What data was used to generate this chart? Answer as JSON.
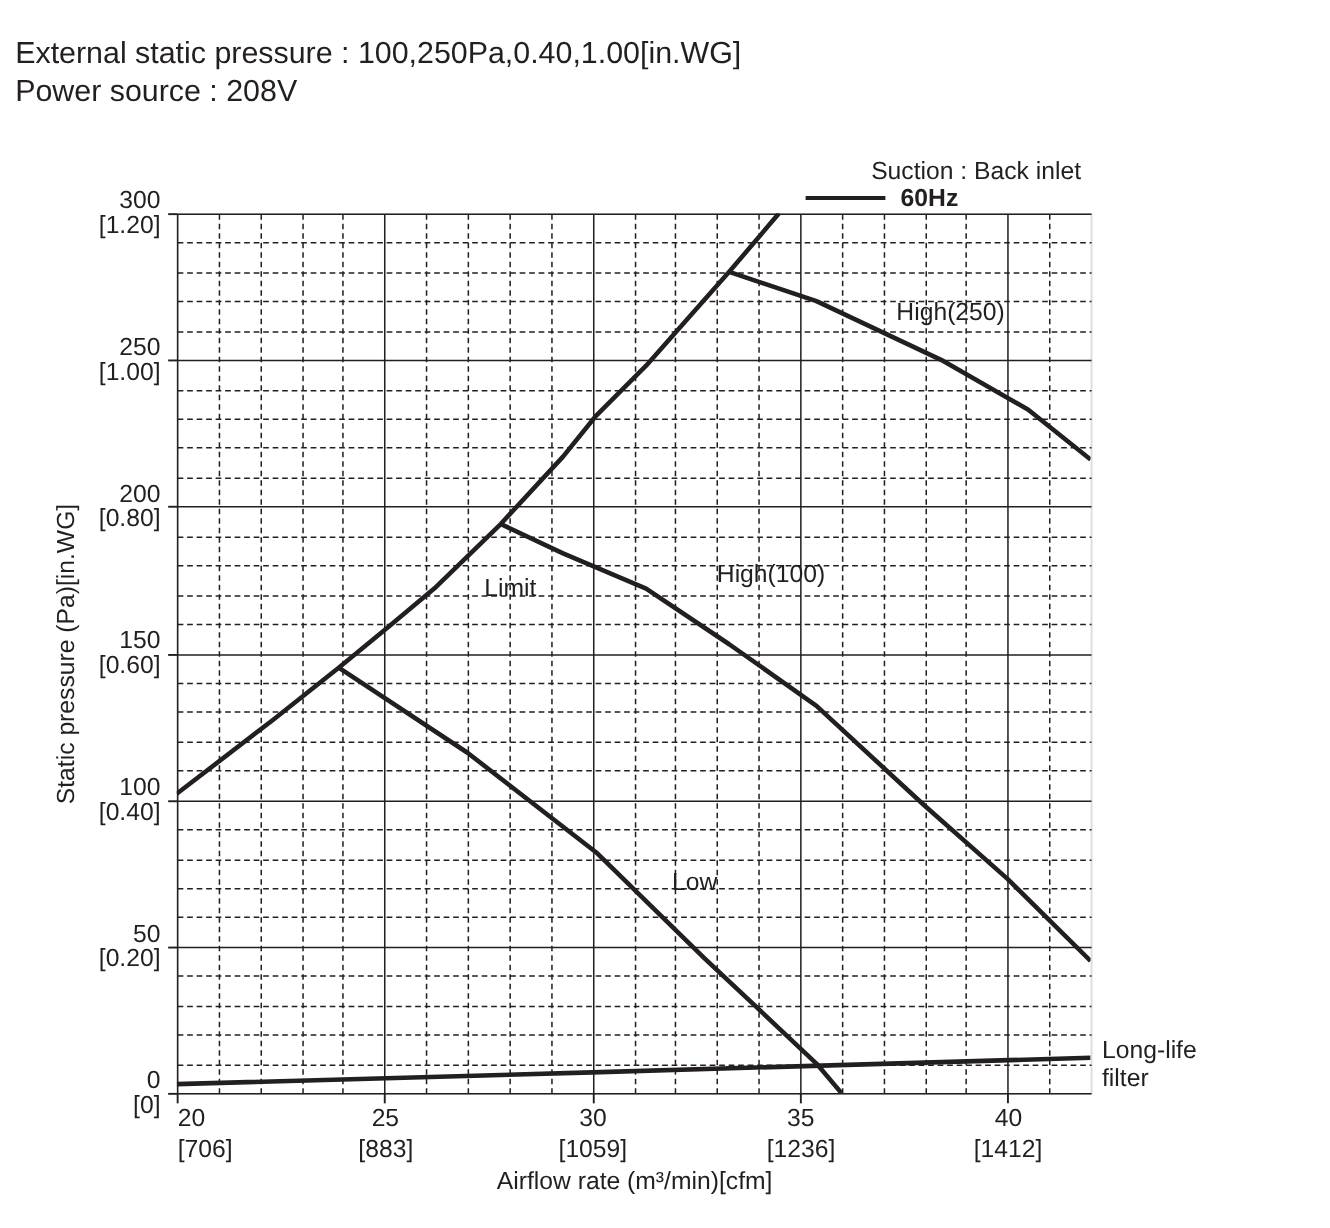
{
  "chart_data": {
    "type": "line",
    "subtitle": [
      "External static pressure : 100,250Pa,0.40,1.00[in.WG]",
      "Power source : 208V"
    ],
    "xlabel": "Airflow rate (m³/min)[cfm]",
    "y2label": "Static pressure (Pa)[in.WG]",
    "legend_title": "Suction : Back inlet",
    "annotations": [
      "60Hz"
    ],
    "xlim": [
      20,
      42
    ],
    "ylim": [
      0,
      300
    ],
    "xticks": [
      20,
      {
        "value": 21,
        "label": null
      },
      {
        "value": 22,
        "label": null
      },
      {
        "value": 23,
        "label": null
      },
      {
        "value": 24,
        "label": null
      },
      25,
      {
        "value": 26,
        "label": null
      },
      {
        "value": 27,
        "label": null
      },
      {
        "value": 28,
        "label": null
      },
      {
        "value": 29,
        "label": null
      },
      30,
      {
        "value": 31,
        "label": null
      },
      {
        "value": 32,
        "label": null
      },
      {
        "value": 33,
        "label": null
      },
      {
        "value": 34,
        "label": null
      },
      35,
      {
        "value": 36,
        "label": null
      },
      {
        "value": 37,
        "label": null
      },
      {
        "value": 38,
        "label": null
      },
      {
        "value": 39,
        "label": null
      },
      40,
      {
        "value": 41,
        "label": null
      }
    ],
    "yticks": [
      0,
      {
        "value": 10,
        "label": null
      },
      {
        "value": 20,
        "label": null
      },
      {
        "value": 30,
        "label": null
      },
      {
        "value": 40,
        "label": null
      },
      50,
      {
        "value": 60,
        "label": null
      },
      {
        "value": 70,
        "label": null
      },
      {
        "value": 80,
        "label": null
      },
      {
        "value": 90,
        "label": null
      },
      100,
      {
        "value": 110,
        "label": null
      },
      {
        "value": 120,
        "label": null
      },
      {
        "value": 130,
        "label": null
      },
      {
        "value": 140,
        "label": null
      },
      150,
      {
        "value": 160,
        "label": null
      },
      {
        "value": 170,
        "label": null
      },
      {
        "value": 180,
        "label": null
      },
      {
        "value": 190,
        "label": null
      },
      200,
      {
        "value": 210,
        "label": null
      },
      {
        "value": 220,
        "label": null
      },
      {
        "value": 230,
        "label": null
      },
      {
        "value": 240,
        "label": null
      },
      250,
      {
        "value": 260,
        "label": null
      },
      {
        "value": 270,
        "label": null
      },
      {
        "value": 280,
        "label": null
      },
      {
        "value": 290,
        "label": null
      },
      300
    ],
    "x2lim": [
      706,
      1483
    ],
    "x2ticks": [
      {
        "value": 706,
        "label": "[706]"
      },
      {
        "value": 883,
        "label": "[883]"
      },
      {
        "value": 1059,
        "label": "[1059]"
      },
      {
        "value": 1236,
        "label": "[1236]"
      },
      {
        "value": 1412,
        "label": "[1412]"
      }
    ],
    "y2lim": [
      0,
      1.2
    ],
    "y2ticks": [
      {
        "value": 0,
        "label": "[0]"
      },
      {
        "value": 0.2,
        "label": "[0.20]"
      },
      {
        "value": 0.4,
        "label": "[0.40]"
      },
      {
        "value": 0.6,
        "label": "[0.60]"
      },
      {
        "value": 0.8,
        "label": "[0.80]"
      },
      {
        "value": 1.0,
        "label": "[1.00]"
      },
      {
        "value": 1.2,
        "label": "[1.20]"
      }
    ],
    "grid": true,
    "marker": "none",
    "line_style": "solid",
    "series": [
      {
        "name": "Limit",
        "color": "#231f20",
        "x": [
          20,
          22.3,
          23.9,
          25.1,
          26.2,
          27.8,
          29.3,
          30.1,
          31.3,
          33.3,
          34.5
        ],
        "values": [
          102,
          127,
          145,
          159,
          172,
          194,
          217,
          231,
          248,
          280,
          300
        ]
      },
      {
        "name": "High(250)",
        "color": "#231f20",
        "x": [
          33.3,
          35.4,
          38.4,
          40.5,
          42
        ],
        "values": [
          280,
          270,
          250,
          233,
          216
        ]
      },
      {
        "name": "High(100)",
        "color": "#231f20",
        "x": [
          27.8,
          29.3,
          31.3,
          33.3,
          35.4,
          38,
          40,
          42
        ],
        "values": [
          194,
          184,
          172,
          153,
          132,
          98,
          73,
          45
        ]
      },
      {
        "name": "Low",
        "color": "#231f20",
        "x": [
          23.9,
          27,
          30.1,
          32.7,
          35.4,
          36
        ],
        "values": [
          145,
          116,
          82,
          46,
          10,
          0
        ]
      },
      {
        "name": "Long-life filter",
        "color": "#231f20",
        "x": [
          20,
          30,
          42
        ],
        "values": [
          3,
          7,
          12
        ]
      }
    ]
  }
}
